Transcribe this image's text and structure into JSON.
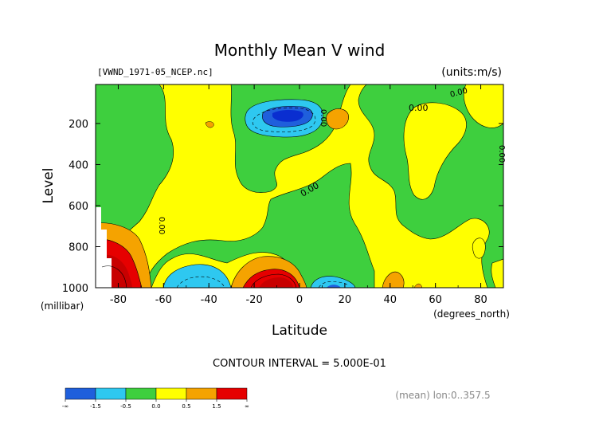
{
  "chart_data": {
    "type": "contour",
    "title": "Monthly Mean V wind",
    "dataset_label": "[VWND_1971-05_NCEP.nc]",
    "units_label": "(units:m/s)",
    "ylabel": "Level",
    "y_unit_label": "(millibar)",
    "xlabel": "Latitude",
    "x_unit_label": "(degrees_north)",
    "xlim": [
      -90,
      90
    ],
    "ylim": [
      1000,
      10
    ],
    "x_ticks": [
      -80,
      -60,
      -40,
      -20,
      0,
      20,
      40,
      60,
      80
    ],
    "x_tick_labels": [
      "-80",
      "-60",
      "-40",
      "-20",
      "0",
      "20",
      "40",
      "60",
      "80"
    ],
    "y_ticks": [
      1000,
      800,
      600,
      400,
      200
    ],
    "y_tick_labels": [
      "1000",
      "800",
      "600",
      "400",
      "200"
    ],
    "contour_interval_text": "CONTOUR INTERVAL = 5.000E-01",
    "footer_text": "(mean) lon:0..357.5",
    "contour_labels": [
      "0.00",
      "0.00",
      "0.00",
      "0.00",
      "0.00",
      "0.00"
    ],
    "colorbar": {
      "labels": [
        "-∞",
        "-1.5",
        "-0.5",
        "0.0",
        "0.5",
        "1.5",
        "∞"
      ],
      "colors": [
        "#1f5fdc",
        "#2ec8f0",
        "#3ecf3e",
        "#ffff00",
        "#f5a300",
        "#e60000"
      ]
    },
    "level_colors": {
      "strong_negative": "#1f5fdc",
      "negative": "#2ec8f0",
      "weak_negative": "#3ecf3e",
      "weak_positive": "#ffff00",
      "positive": "#f5a300",
      "strong_positive": "#e60000",
      "deep_red": "#c80000",
      "deep_blue": "#0a2ed0"
    }
  }
}
